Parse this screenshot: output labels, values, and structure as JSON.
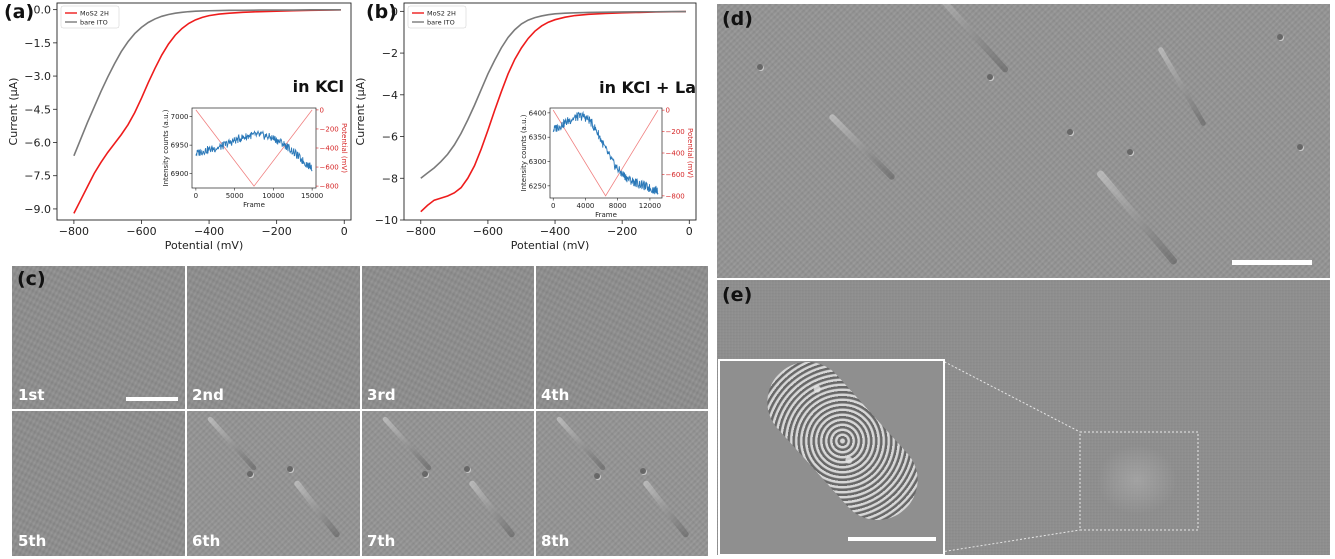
{
  "panels": {
    "a": "(a)",
    "b": "(b)",
    "c": "(c)",
    "d": "(d)",
    "e": "(e)"
  },
  "frames": [
    "1st",
    "2nd",
    "3rd",
    "4th",
    "5th",
    "6th",
    "7th",
    "8th"
  ],
  "colors": {
    "mos2": "#ee1c1c",
    "ito": "#7a7a7a",
    "inset_trace": "#2a78b8",
    "inset_potential": "#f08080",
    "scalebar": "#ffffff"
  },
  "chart_data": [
    {
      "panel": "a",
      "type": "line",
      "annotation": "in KCl",
      "xlabel": "Potential (mV)",
      "ylabel": "Current (μA)",
      "xlim": [
        -850,
        20
      ],
      "ylim": [
        -9.5,
        0.3
      ],
      "xticks": [
        -800,
        -600,
        -400,
        -200,
        0
      ],
      "yticks": [
        0.0,
        -1.5,
        -3.0,
        -4.5,
        -6.0,
        -7.5,
        -9.0
      ],
      "ytick_labels": [
        "0.0",
        "−1.5",
        "−3.0",
        "−4.5",
        "−6.0",
        "−7.5",
        "−9.0"
      ],
      "xtick_labels": [
        "−800",
        "−600",
        "−400",
        "−200",
        "0"
      ],
      "legend": "top-left",
      "series": [
        {
          "name": "MoS2 2H",
          "color": "#ee1c1c",
          "x": [
            -800,
            -780,
            -760,
            -740,
            -720,
            -700,
            -680,
            -660,
            -640,
            -620,
            -600,
            -580,
            -560,
            -540,
            -520,
            -500,
            -480,
            -460,
            -440,
            -420,
            -400,
            -370,
            -340,
            -300,
            -250,
            -200,
            -150,
            -100,
            -50,
            -10
          ],
          "y": [
            -9.2,
            -8.6,
            -8.0,
            -7.4,
            -6.9,
            -6.45,
            -6.05,
            -5.65,
            -5.2,
            -4.65,
            -4.0,
            -3.3,
            -2.65,
            -2.05,
            -1.55,
            -1.15,
            -0.85,
            -0.62,
            -0.46,
            -0.35,
            -0.27,
            -0.2,
            -0.16,
            -0.12,
            -0.09,
            -0.07,
            -0.05,
            -0.03,
            -0.02,
            -0.01
          ]
        },
        {
          "name": "bare ITO",
          "color": "#7a7a7a",
          "x": [
            -800,
            -780,
            -760,
            -740,
            -720,
            -700,
            -680,
            -660,
            -640,
            -620,
            -600,
            -580,
            -560,
            -540,
            -520,
            -500,
            -480,
            -460,
            -440,
            -420,
            -400,
            -370,
            -340,
            -300,
            -250,
            -200,
            -150,
            -100,
            -50,
            -10
          ],
          "y": [
            -6.6,
            -5.85,
            -5.1,
            -4.4,
            -3.7,
            -3.05,
            -2.45,
            -1.9,
            -1.45,
            -1.08,
            -0.8,
            -0.58,
            -0.42,
            -0.3,
            -0.22,
            -0.16,
            -0.12,
            -0.09,
            -0.07,
            -0.06,
            -0.05,
            -0.04,
            -0.03,
            -0.03,
            -0.02,
            -0.02,
            -0.02,
            -0.01,
            -0.01,
            -0.01
          ]
        }
      ],
      "inset": {
        "xlabel": "Frame",
        "ylabel": "Intensity counts (a.u.)",
        "ylabel_right": "Potential (mV)",
        "xlim": [
          -500,
          15500
        ],
        "ylim": [
          6875,
          7015
        ],
        "ylim_right": [
          -820,
          20
        ],
        "xticks": [
          0,
          5000,
          10000,
          15000
        ],
        "yticks": [
          6900,
          6950,
          7000
        ],
        "yticks_right": [
          0,
          -200,
          -400,
          -600,
          -800
        ],
        "xtick_labels": [
          "0",
          "5000",
          "10000",
          "15000"
        ],
        "ytick_labels": [
          "6900",
          "6950",
          "7000"
        ],
        "ytick_right_labels": [
          "0",
          "−200",
          "−400",
          "−600",
          "−800"
        ],
        "intensity": {
          "x": [
            0,
            1000,
            2000,
            3000,
            4000,
            5000,
            6000,
            7000,
            8000,
            9000,
            10000,
            11000,
            12000,
            13000,
            14000,
            15000
          ],
          "y": [
            6935,
            6940,
            6943,
            6946,
            6952,
            6958,
            6963,
            6967,
            6968,
            6966,
            6962,
            6955,
            6945,
            6933,
            6920,
            6910
          ]
        },
        "potential": {
          "x": [
            0,
            7500,
            15000
          ],
          "y": [
            0,
            -800,
            0
          ]
        }
      }
    },
    {
      "panel": "b",
      "type": "line",
      "annotation": "in KCl + La",
      "xlabel": "Potential (mV)",
      "ylabel": "Current (μA)",
      "xlim": [
        -850,
        20
      ],
      "ylim": [
        -10.0,
        0.4
      ],
      "xticks": [
        -800,
        -600,
        -400,
        -200,
        0
      ],
      "yticks": [
        0,
        -2,
        -4,
        -6,
        -8,
        -10
      ],
      "ytick_labels": [
        "0",
        "−2",
        "−4",
        "−6",
        "−8",
        "−10"
      ],
      "xtick_labels": [
        "−800",
        "−600",
        "−400",
        "−200",
        "0"
      ],
      "legend": "top-left",
      "series": [
        {
          "name": "MoS2 2H",
          "color": "#ee1c1c",
          "x": [
            -800,
            -780,
            -760,
            -740,
            -720,
            -700,
            -680,
            -660,
            -640,
            -620,
            -600,
            -580,
            -560,
            -540,
            -520,
            -500,
            -480,
            -460,
            -440,
            -420,
            -400,
            -370,
            -340,
            -300,
            -250,
            -200,
            -150,
            -100,
            -50,
            -10
          ],
          "y": [
            -9.6,
            -9.3,
            -9.05,
            -8.95,
            -8.85,
            -8.7,
            -8.45,
            -8.0,
            -7.4,
            -6.6,
            -5.7,
            -4.75,
            -3.85,
            -3.0,
            -2.3,
            -1.75,
            -1.3,
            -0.95,
            -0.7,
            -0.52,
            -0.4,
            -0.28,
            -0.2,
            -0.14,
            -0.1,
            -0.07,
            -0.05,
            -0.03,
            -0.02,
            -0.01
          ]
        },
        {
          "name": "bare ITO",
          "color": "#7a7a7a",
          "x": [
            -800,
            -780,
            -760,
            -740,
            -720,
            -700,
            -680,
            -660,
            -640,
            -620,
            -600,
            -580,
            -560,
            -540,
            -520,
            -500,
            -480,
            -460,
            -440,
            -420,
            -400,
            -370,
            -340,
            -300,
            -250,
            -200,
            -150,
            -100,
            -50,
            -10
          ],
          "y": [
            -8.0,
            -7.75,
            -7.5,
            -7.2,
            -6.85,
            -6.4,
            -5.85,
            -5.2,
            -4.5,
            -3.75,
            -3.0,
            -2.35,
            -1.75,
            -1.25,
            -0.88,
            -0.6,
            -0.42,
            -0.3,
            -0.22,
            -0.16,
            -0.12,
            -0.09,
            -0.07,
            -0.05,
            -0.04,
            -0.03,
            -0.02,
            -0.02,
            -0.01,
            -0.01
          ]
        }
      ],
      "inset": {
        "xlabel": "Frame",
        "ylabel": "Intensity counts (a.u.)",
        "ylabel_right": "Potential (mV)",
        "xlim": [
          -400,
          13500
        ],
        "ylim": [
          6225,
          6410
        ],
        "ylim_right": [
          -820,
          20
        ],
        "xticks": [
          0,
          4000,
          8000,
          12000
        ],
        "yticks": [
          6250,
          6300,
          6350,
          6400
        ],
        "yticks_right": [
          0,
          -200,
          -400,
          -600,
          -800
        ],
        "xtick_labels": [
          "0",
          "4000",
          "8000",
          "12000"
        ],
        "ytick_labels": [
          "6250",
          "6300",
          "6350",
          "6400"
        ],
        "ytick_right_labels": [
          "0",
          "−200",
          "−400",
          "−600",
          "−800"
        ],
        "intensity": {
          "x": [
            0,
            1000,
            2000,
            3000,
            3800,
            4500,
            5500,
            6500,
            7500,
            8500,
            9500,
            10500,
            11500,
            12500,
            13000
          ],
          "y": [
            6365,
            6375,
            6385,
            6392,
            6393,
            6385,
            6360,
            6325,
            6295,
            6275,
            6262,
            6255,
            6248,
            6242,
            6240
          ]
        },
        "potential": {
          "x": [
            0,
            6500,
            13000
          ],
          "y": [
            0,
            -800,
            0
          ]
        }
      }
    }
  ]
}
